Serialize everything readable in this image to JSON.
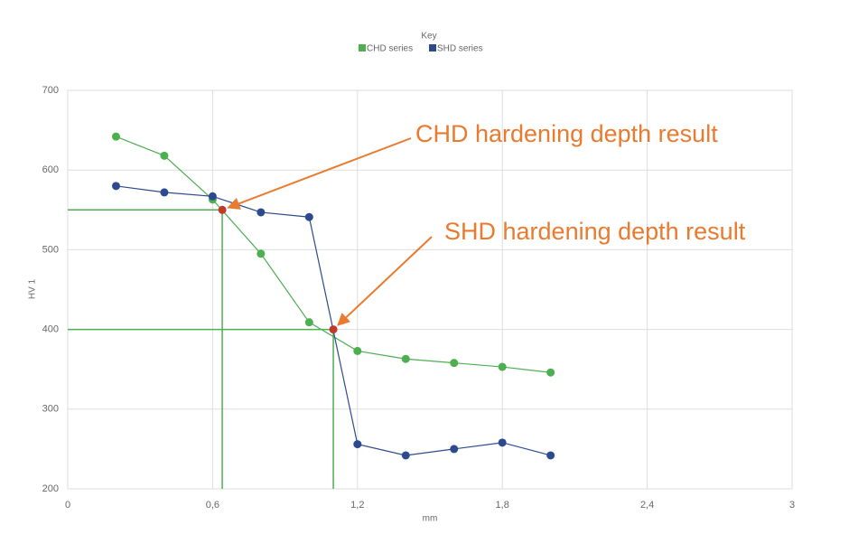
{
  "chart_data": {
    "type": "line",
    "legend_title": "Key",
    "x_label": "mm",
    "y_label": "HV 1",
    "x": [
      0.2,
      0.4,
      0.6,
      0.8,
      1.0,
      1.2,
      1.4,
      1.6,
      1.8,
      2.0
    ],
    "series": [
      {
        "name": "CHD series",
        "color": "#4caf50",
        "values": [
          642,
          618,
          563,
          495,
          409,
          373,
          363,
          358,
          353,
          346
        ]
      },
      {
        "name": "SHD series",
        "color": "#2e4a8f",
        "values": [
          580,
          572,
          567,
          547,
          541,
          256,
          242,
          250,
          258,
          242
        ]
      }
    ],
    "xlim": [
      0,
      3
    ],
    "xticks": [
      0,
      {
        "value": 0.6,
        "label": "0,6"
      },
      {
        "value": 1.2,
        "label": "1,2"
      },
      {
        "value": 1.8,
        "label": "1,8"
      },
      {
        "value": 2.4,
        "label": "2,4"
      },
      3
    ],
    "ylim": [
      200,
      700
    ],
    "yticks": [
      200,
      300,
      400,
      500,
      600,
      700
    ],
    "grid": true,
    "annotations": [
      {
        "text": "CHD hardening depth result",
        "x": 0.64,
        "y": 550
      },
      {
        "text": "SHD hardening depth result",
        "x": 1.1,
        "y": 400
      }
    ],
    "annotation_color": "#e97a2e",
    "result_color": "#c0392b",
    "guide_color": "#4caf50"
  }
}
